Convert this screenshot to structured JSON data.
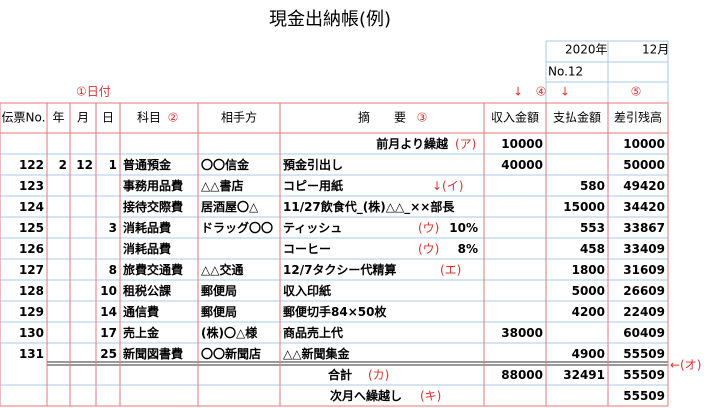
{
  "title": "現金出納帳(例)",
  "date": {
    "year": "2020年",
    "month": "12月"
  },
  "number": "No.12",
  "annotations": {
    "date": "①日付",
    "income_arrow": "↓",
    "income_mark": "④",
    "payment_arrow": "↓",
    "balance_mark": "⑤"
  },
  "table": {
    "headers": [
      "伝票No.",
      "年",
      "月",
      "日",
      "科目",
      "相手方",
      "摘　　要",
      "収入金額",
      "支払金額",
      "差引残高"
    ],
    "header_marks": {
      "subject": "②",
      "summary": "③"
    },
    "rows": [
      {
        "cells": [
          null,
          null,
          null,
          null,
          null,
          null,
          "前月より繰越",
          10000,
          null,
          10000
        ],
        "note": "(ア)"
      },
      {
        "cells": [
          122,
          2,
          12,
          1,
          "普通預金",
          "〇〇信金",
          "預金引出し",
          40000,
          null,
          50000
        ]
      },
      {
        "cells": [
          123,
          null,
          null,
          null,
          "事務用品費",
          "△△書店",
          "コピー用紙",
          null,
          580,
          49420
        ],
        "note": "↓(イ)"
      },
      {
        "cells": [
          124,
          null,
          null,
          null,
          "接待交際費",
          "居酒屋〇△",
          "11/27飲食代_(株)△△_××部長",
          null,
          15000,
          34420
        ]
      },
      {
        "cells": [
          125,
          null,
          null,
          3,
          "消耗品費",
          "ドラッグ〇〇",
          "ティッシュ",
          null,
          553,
          33867
        ],
        "note": "(ウ)",
        "tax": "10%"
      },
      {
        "cells": [
          126,
          null,
          null,
          null,
          "消耗品費",
          null,
          "コーヒー",
          null,
          458,
          33409
        ],
        "note": "(ウ)",
        "tax": "8%"
      },
      {
        "cells": [
          127,
          null,
          null,
          8,
          "旅費交通費",
          "△△交通",
          "12/7タクシー代精算",
          null,
          1800,
          31609
        ],
        "note": "(エ)"
      },
      {
        "cells": [
          128,
          null,
          null,
          10,
          "租税公課",
          "郵便局",
          "収入印紙",
          null,
          5000,
          26609
        ]
      },
      {
        "cells": [
          129,
          null,
          null,
          14,
          "通信費",
          "郵便局",
          "郵便切手84×50枚",
          null,
          4200,
          22409
        ]
      },
      {
        "cells": [
          130,
          null,
          null,
          17,
          "売上金",
          "(株)〇△様",
          "商品売上代",
          38000,
          null,
          60409
        ]
      },
      {
        "cells": [
          131,
          null,
          null,
          25,
          "新聞図書費",
          "〇〇新聞店",
          "△△新聞集金",
          null,
          4900,
          55509
        ],
        "side_note": "←(オ)"
      }
    ],
    "total": {
      "label": "合計",
      "note": "(カ)",
      "income": 88000,
      "payment": 32491,
      "balance": 55509
    },
    "carry_forward": {
      "label": "次月へ繰越し",
      "note": "(キ)",
      "balance": 55509
    }
  }
}
